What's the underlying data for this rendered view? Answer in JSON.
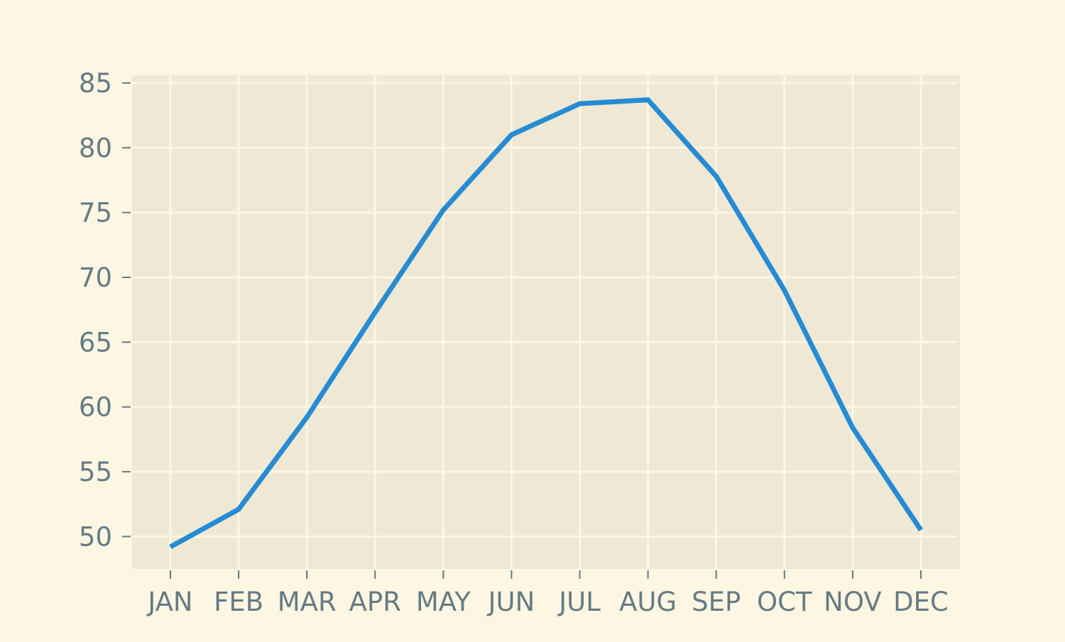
{
  "chart_data": {
    "type": "line",
    "title": "",
    "xlabel": "",
    "ylabel": "",
    "categories": [
      "JAN",
      "FEB",
      "MAR",
      "APR",
      "MAY",
      "JUN",
      "JUL",
      "AUG",
      "SEP",
      "OCT",
      "NOV",
      "DEC"
    ],
    "yticks": [
      50,
      55,
      60,
      65,
      70,
      75,
      80,
      85
    ],
    "ylim": [
      47.5,
      85.6
    ],
    "grid": true,
    "series": [
      {
        "values": [
          49.2,
          52.1,
          59.2,
          67.3,
          75.2,
          81.0,
          83.4,
          83.7,
          77.8,
          69.0,
          58.4,
          50.5
        ],
        "color": "#268bd2"
      }
    ],
    "colors": {
      "background": "#fdf6e3",
      "plot_background": "#eee8d5",
      "grid": "#fdf6e3",
      "tick_text": "#657b83"
    }
  }
}
